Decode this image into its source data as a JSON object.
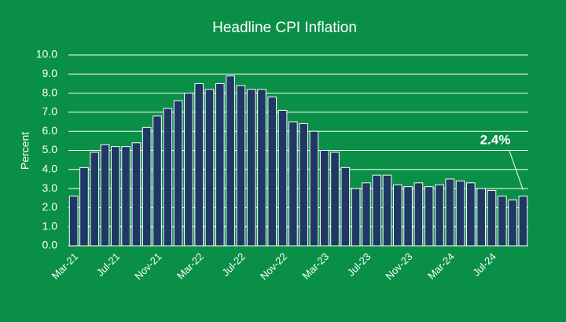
{
  "chart_data": {
    "type": "bar",
    "title": "Headline CPI Inflation",
    "y_label": "Percent",
    "annotation": "2.4%",
    "categories": [
      "Mar-21",
      null,
      null,
      null,
      "Jul-21",
      null,
      null,
      null,
      "Nov-21",
      null,
      null,
      null,
      "Mar-22",
      null,
      null,
      null,
      "Jul-22",
      null,
      null,
      null,
      "Nov-22",
      null,
      null,
      null,
      "Mar-23",
      null,
      null,
      null,
      "Jul-23",
      null,
      null,
      null,
      "Nov-23",
      null,
      null,
      null,
      "Mar-24",
      null,
      null,
      null,
      "Jul-24",
      null,
      null,
      null
    ],
    "values": [
      2.6,
      4.1,
      4.9,
      5.3,
      5.2,
      5.2,
      5.4,
      6.2,
      6.8,
      7.2,
      7.6,
      8.0,
      8.5,
      8.2,
      8.5,
      8.9,
      8.4,
      8.2,
      8.2,
      7.8,
      7.1,
      6.5,
      6.4,
      6.0,
      5.0,
      4.9,
      4.1,
      3.0,
      3.3,
      3.7,
      3.7,
      3.2,
      3.1,
      3.3,
      3.1,
      3.2,
      3.5,
      3.4,
      3.3,
      3.0,
      2.9,
      2.6,
      2.4,
      2.6
    ],
    "color": "#1f3864",
    "ylim": [
      0,
      10
    ],
    "yticks": [
      {
        "value": 0,
        "label": "0.0"
      },
      {
        "value": 1,
        "label": "1.0"
      },
      {
        "value": 2,
        "label": "2.0"
      },
      {
        "value": 3,
        "label": "3.0"
      },
      {
        "value": 4,
        "label": "4.0"
      },
      {
        "value": 5,
        "label": "5.0"
      },
      {
        "value": 6,
        "label": "6.0"
      },
      {
        "value": 7,
        "label": "7.0"
      },
      {
        "value": 8,
        "label": "8.0"
      },
      {
        "value": 9,
        "label": "9.0"
      },
      {
        "value": 10,
        "label": "10.0"
      }
    ],
    "grid": true
  }
}
